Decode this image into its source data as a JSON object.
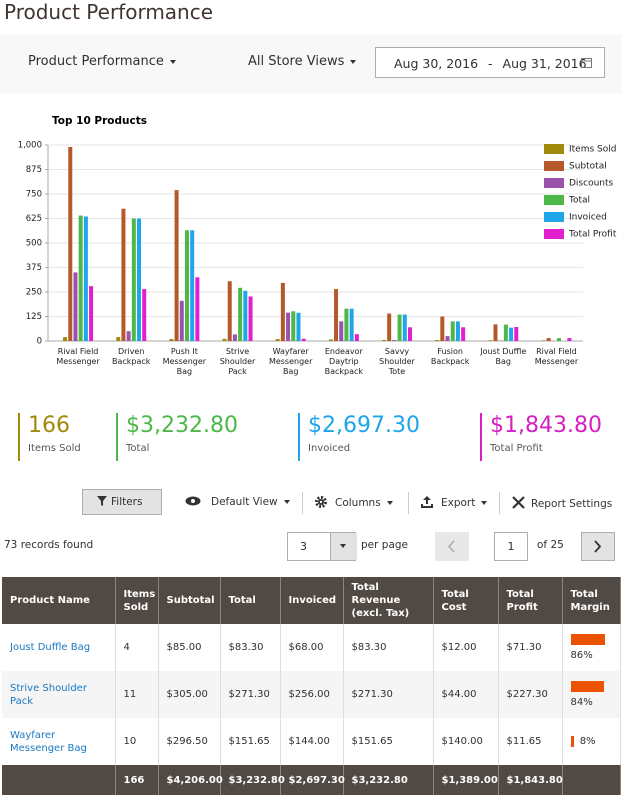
{
  "header": {
    "title": "Product Performance"
  },
  "filters": {
    "report": "Product Performance",
    "store": "All Store Views",
    "date_from": "Aug 30, 2016",
    "date_sep": "-",
    "date_to": "Aug 31, 2016"
  },
  "chart_data": {
    "type": "bar",
    "title": "Top 10 Products",
    "categories": [
      "Rival Field Messenger",
      "Driven Backpack",
      "Push It Messenger Bag",
      "Strive Shoulder Pack",
      "Wayfarer Messenger Bag",
      "Endeavor Daytrip Backpack",
      "Savvy Shoulder Tote",
      "Fusion Backpack",
      "Joust Duffle Bag",
      "Rival Field Messenger"
    ],
    "series": [
      {
        "name": "Items Sold",
        "color": "#a08a0c",
        "values": [
          20,
          20,
          10,
          11,
          10,
          8,
          5,
          5,
          4,
          3
        ]
      },
      {
        "name": "Subtotal",
        "color": "#b5582a",
        "values": [
          990,
          675,
          770,
          305,
          296.5,
          265,
          140,
          125,
          85,
          15
        ]
      },
      {
        "name": "Discounts",
        "color": "#9b52ad",
        "values": [
          350,
          50,
          205,
          33.7,
          144.85,
          100,
          5,
          25,
          1.7,
          0
        ]
      },
      {
        "name": "Total",
        "color": "#4db848",
        "values": [
          640,
          625,
          565,
          271.3,
          151.65,
          165,
          135,
          100,
          83.3,
          15
        ]
      },
      {
        "name": "Invoiced",
        "color": "#1ea5ea",
        "values": [
          635,
          625,
          565,
          256,
          144,
          165,
          135,
          100,
          68,
          0
        ]
      },
      {
        "name": "Total Profit",
        "color": "#e21fcf",
        "values": [
          280,
          265,
          325,
          227.3,
          11.65,
          35,
          70,
          70,
          71.3,
          15
        ]
      }
    ],
    "ylim": [
      0,
      1000
    ],
    "yticks": [
      0,
      125,
      250,
      375,
      500,
      625,
      750,
      875,
      {
        "value": 1000,
        "label": "1,000"
      }
    ],
    "grid": true,
    "legend": "top-right"
  },
  "summary": [
    {
      "value": "166",
      "label": "Items Sold",
      "color": "#a08a0c"
    },
    {
      "value": "$3,232.80",
      "label": "Total",
      "color": "#4db848"
    },
    {
      "value": "$2,697.30",
      "label": "Invoiced",
      "color": "#1ea5ea"
    },
    {
      "value": "$1,843.80",
      "label": "Total Profit",
      "color": "#d61fc2"
    }
  ],
  "toolbar": {
    "filters": "Filters",
    "view": "Default View",
    "columns": "Columns",
    "export": "Export",
    "settings": "Report Settings"
  },
  "pager": {
    "records": "73 records found",
    "page_size": "3",
    "per_page": "per page",
    "page": "1",
    "of": "of 25"
  },
  "table": {
    "columns": [
      "Product Name",
      "Items Sold",
      "Subtotal",
      "Total",
      "Invoiced",
      "Total Revenue (excl. Tax)",
      "Total Cost",
      "Total Profit",
      "Total Margin"
    ],
    "rows": [
      {
        "cells": [
          "Joust Duffle Bag",
          "4",
          "$85.00",
          "$83.30",
          "$68.00",
          "$83.30",
          "$12.00",
          "$71.30"
        ],
        "margin": {
          "value": 86,
          "label": "86%"
        }
      },
      {
        "cells": [
          "Strive Shoulder Pack",
          "11",
          "$305.00",
          "$271.30",
          "$256.00",
          "$271.30",
          "$44.00",
          "$227.30"
        ],
        "margin": {
          "value": 84,
          "label": "84%"
        }
      },
      {
        "cells": [
          "Wayfarer Messenger Bag",
          "10",
          "$296.50",
          "$151.65",
          "$144.00",
          "$151.65",
          "$140.00",
          "$11.65"
        ],
        "margin": {
          "value": 8,
          "label": "8%"
        }
      }
    ],
    "totals": [
      "166",
      "$4,206.00",
      "$3,232.80",
      "$2,697.30",
      "$3,232.80",
      "$1,389.00",
      "$1,843.80"
    ]
  }
}
